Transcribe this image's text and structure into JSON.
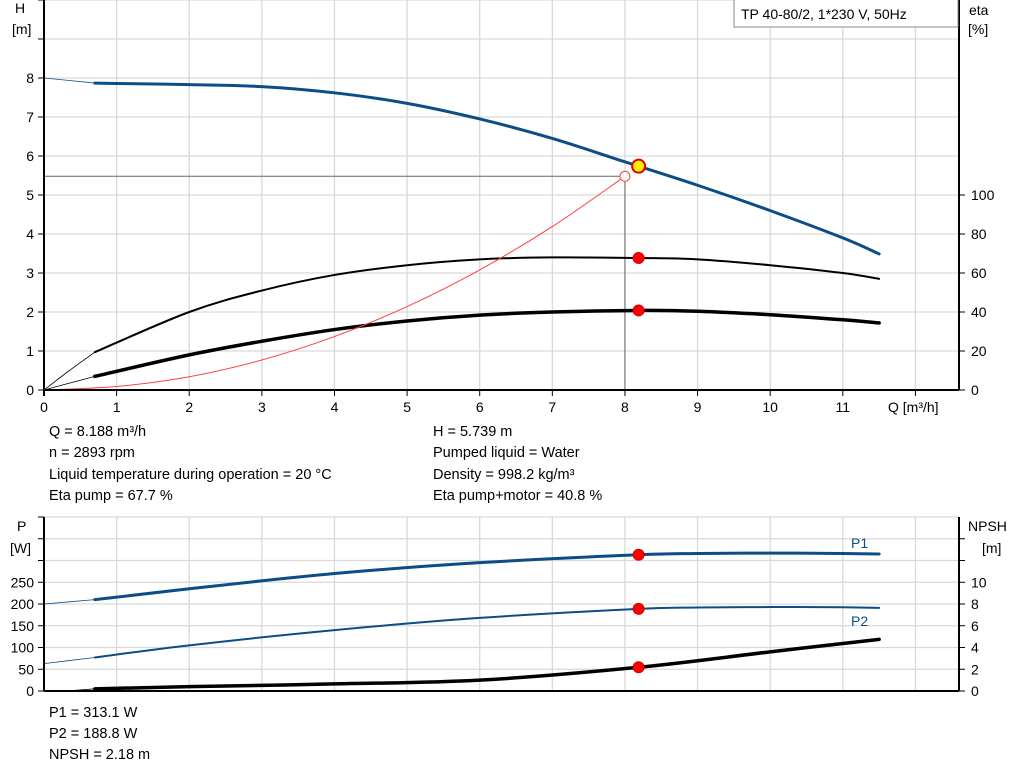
{
  "colors": {
    "pump_curve": "#0c4d86",
    "efficiency": "#000000",
    "system_curve": "#ff4040",
    "duty_point": "#ff0000",
    "operating_point_fill": "#ffee00",
    "grid": "#d9d9d9"
  },
  "title_box": "TP 40-80/2, 1*230 V, 50Hz",
  "chart_data": [
    {
      "type": "line",
      "name_left_axis": "H",
      "unit_left_axis": "[m]",
      "name_right_axis": "eta",
      "unit_right_axis": "[%]",
      "xlabel": "Q [m³/h]",
      "xlim": [
        0,
        12.6
      ],
      "xticks": [
        "0",
        "1",
        "2",
        "3",
        "4",
        "5",
        "6",
        "7",
        "8",
        "9",
        "10",
        "11"
      ],
      "ylim": [
        0,
        10
      ],
      "yticks": [
        "0",
        "1",
        "2",
        "3",
        "4",
        "5",
        "6",
        "7",
        "8"
      ],
      "y2lim": [
        0,
        200
      ],
      "y2ticks": [
        "0",
        "20",
        "40",
        "60",
        "80",
        "100"
      ],
      "grid": true,
      "series": [
        {
          "id": "H",
          "axis": "left",
          "color": "#0c4d86",
          "width": 3,
          "extension": [
            [
              0,
              8.0
            ],
            [
              0.7,
              7.87
            ]
          ],
          "points": [
            [
              0.7,
              7.87
            ],
            [
              1,
              7.86
            ],
            [
              2,
              7.83
            ],
            [
              3,
              7.78
            ],
            [
              4,
              7.62
            ],
            [
              5,
              7.35
            ],
            [
              6,
              6.95
            ],
            [
              7,
              6.45
            ],
            [
              8,
              5.85
            ],
            [
              9,
              5.25
            ],
            [
              10,
              4.6
            ],
            [
              11,
              3.9
            ],
            [
              11.5,
              3.49
            ]
          ]
        },
        {
          "id": "eta_pump",
          "axis": "right",
          "color": "#000000",
          "width": 2,
          "extension": [
            [
              0,
              0
            ],
            [
              0.35,
              10
            ],
            [
              0.7,
              19.4
            ]
          ],
          "points": [
            [
              0.7,
              19.4
            ],
            [
              2,
              40
            ],
            [
              3,
              51
            ],
            [
              4,
              59
            ],
            [
              5,
              64
            ],
            [
              6,
              67
            ],
            [
              7,
              68
            ],
            [
              8.188,
              67.7
            ],
            [
              9,
              67
            ],
            [
              10,
              64
            ],
            [
              11,
              60
            ],
            [
              11.5,
              57
            ]
          ]
        },
        {
          "id": "eta_pump_motor",
          "axis": "right",
          "color": "#000000",
          "width": 3.5,
          "extension": [
            [
              0,
              0
            ],
            [
              0.7,
              7
            ]
          ],
          "points": [
            [
              0.7,
              7
            ],
            [
              2,
              18
            ],
            [
              3,
              25
            ],
            [
              4,
              31
            ],
            [
              5,
              35.4
            ],
            [
              6,
              38.4
            ],
            [
              7,
              40
            ],
            [
              8.188,
              40.8
            ],
            [
              9,
              40.4
            ],
            [
              10,
              38.6
            ],
            [
              11,
              36
            ],
            [
              11.5,
              34.4
            ]
          ]
        },
        {
          "id": "system_curve",
          "axis": "left",
          "color": "#ff4040",
          "width": 1,
          "points": [
            [
              0,
              0
            ],
            [
              1,
              0.09
            ],
            [
              2,
              0.34
            ],
            [
              3,
              0.77
            ],
            [
              4,
              1.37
            ],
            [
              5,
              2.14
            ],
            [
              6,
              3.08
            ],
            [
              7,
              4.19
            ],
            [
              8,
              5.48
            ]
          ]
        }
      ],
      "operating_point": {
        "Q": 8.188,
        "H": 5.739
      },
      "system_point": {
        "Q": 8.0,
        "H": 5.48
      },
      "duty_markers": [
        {
          "Q": 8.188,
          "value": 67.7,
          "axis": "right"
        },
        {
          "Q": 8.188,
          "value": 40.8,
          "axis": "right"
        }
      ]
    },
    {
      "type": "line",
      "name_left_axis": "P",
      "unit_left_axis": "[W]",
      "name_right_axis": "NPSH",
      "unit_right_axis": "[m]",
      "xlim": [
        0,
        12.6
      ],
      "ylim": [
        0,
        400
      ],
      "yticks": [
        "0",
        "50",
        "100",
        "150",
        "200",
        "250"
      ],
      "y2lim": [
        0,
        16
      ],
      "y2ticks": [
        "0",
        "2",
        "4",
        "6",
        "8",
        "10"
      ],
      "grid": true,
      "series": [
        {
          "id": "P1",
          "name": "P1",
          "axis": "left",
          "color": "#0c4d86",
          "width": 3,
          "extension": [
            [
              0,
              200
            ],
            [
              0.7,
              210
            ]
          ],
          "points": [
            [
              0.7,
              210
            ],
            [
              2,
              235
            ],
            [
              4,
              270
            ],
            [
              6,
              295
            ],
            [
              8.188,
              313.1
            ],
            [
              9,
              316
            ],
            [
              10,
              317
            ],
            [
              11,
              316
            ],
            [
              11.5,
              315
            ]
          ]
        },
        {
          "id": "P2",
          "name": "P2",
          "axis": "left",
          "color": "#0c4d86",
          "width": 2,
          "extension": [
            [
              0,
              63
            ],
            [
              0.7,
              77
            ]
          ],
          "points": [
            [
              0.7,
              77
            ],
            [
              2,
              105
            ],
            [
              4,
              140
            ],
            [
              6,
              168
            ],
            [
              8.188,
              188.8
            ],
            [
              9,
              192
            ],
            [
              10,
              193
            ],
            [
              11,
              192.5
            ],
            [
              11.5,
              191
            ]
          ]
        },
        {
          "id": "NPSH",
          "axis": "right",
          "color": "#000000",
          "width": 3.5,
          "extension": [
            [
              0.3,
              0
            ],
            [
              0.7,
              0.2
            ]
          ],
          "points": [
            [
              0.7,
              0.2
            ],
            [
              2,
              0.4
            ],
            [
              4,
              0.65
            ],
            [
              6,
              1.0
            ],
            [
              8.188,
              2.18
            ],
            [
              10,
              3.6
            ],
            [
              11.5,
              4.75
            ]
          ]
        }
      ],
      "duty_markers": [
        {
          "Q": 8.188,
          "value": 313.1,
          "axis": "left"
        },
        {
          "Q": 8.188,
          "value": 188.8,
          "axis": "left"
        },
        {
          "Q": 8.188,
          "value": 2.18,
          "axis": "right"
        }
      ]
    }
  ],
  "results_top": {
    "left": [
      "Q = 8.188 m³/h",
      "n = 2893 rpm",
      "Liquid temperature during operation = 20 °C",
      "Eta pump = 67.7 %"
    ],
    "right": [
      "H = 5.739 m",
      "Pumped liquid = Water",
      "Density = 998.2 kg/m³",
      "Eta pump+motor = 40.8 %"
    ]
  },
  "results_bottom": [
    "P1 = 313.1 W",
    "P2 = 188.8 W",
    "NPSH = 2.18 m"
  ]
}
